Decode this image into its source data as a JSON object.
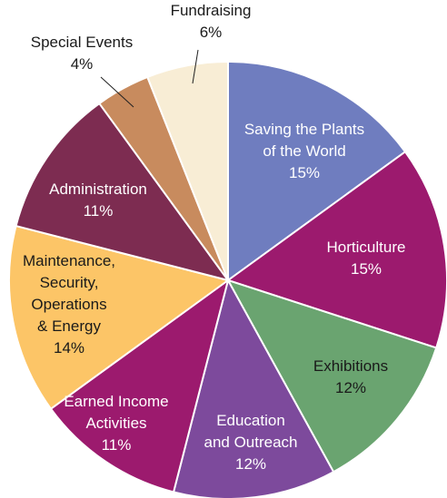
{
  "chart_data": {
    "type": "pie",
    "title": "",
    "slices": [
      {
        "lines": [
          "Saving the Plants",
          "of the World",
          "15%"
        ],
        "value": 15,
        "color": "#6f7dbf",
        "text_color": "#ffffff"
      },
      {
        "lines": [
          "Horticulture",
          "15%"
        ],
        "value": 15,
        "color": "#9c1a6e",
        "text_color": "#ffffff"
      },
      {
        "lines": [
          "Exhibitions",
          "12%"
        ],
        "value": 12,
        "color": "#6aa470",
        "text_color": "#1a1a1a"
      },
      {
        "lines": [
          "Education",
          "and Outreach",
          "12%"
        ],
        "value": 12,
        "color": "#7d4a9c",
        "text_color": "#ffffff"
      },
      {
        "lines": [
          "Earned Income",
          "Activities",
          "11%"
        ],
        "value": 11,
        "color": "#9c1a6e",
        "text_color": "#ffffff"
      },
      {
        "lines": [
          "Maintenance,",
          "Security,",
          "Operations",
          "& Energy",
          "14%"
        ],
        "value": 14,
        "color": "#fcc567",
        "text_color": "#1a1a1a"
      },
      {
        "lines": [
          "Administration",
          "11%"
        ],
        "value": 11,
        "color": "#7d2c51",
        "text_color": "#ffffff"
      },
      {
        "lines": [
          "Special Events",
          "4%"
        ],
        "value": 4,
        "color": "#c88b5e",
        "text_color": "#1a1a1a"
      },
      {
        "lines": [
          "Fundraising",
          "6%"
        ],
        "value": 6,
        "color": "#f8edd5",
        "text_color": "#1a1a1a"
      }
    ]
  }
}
